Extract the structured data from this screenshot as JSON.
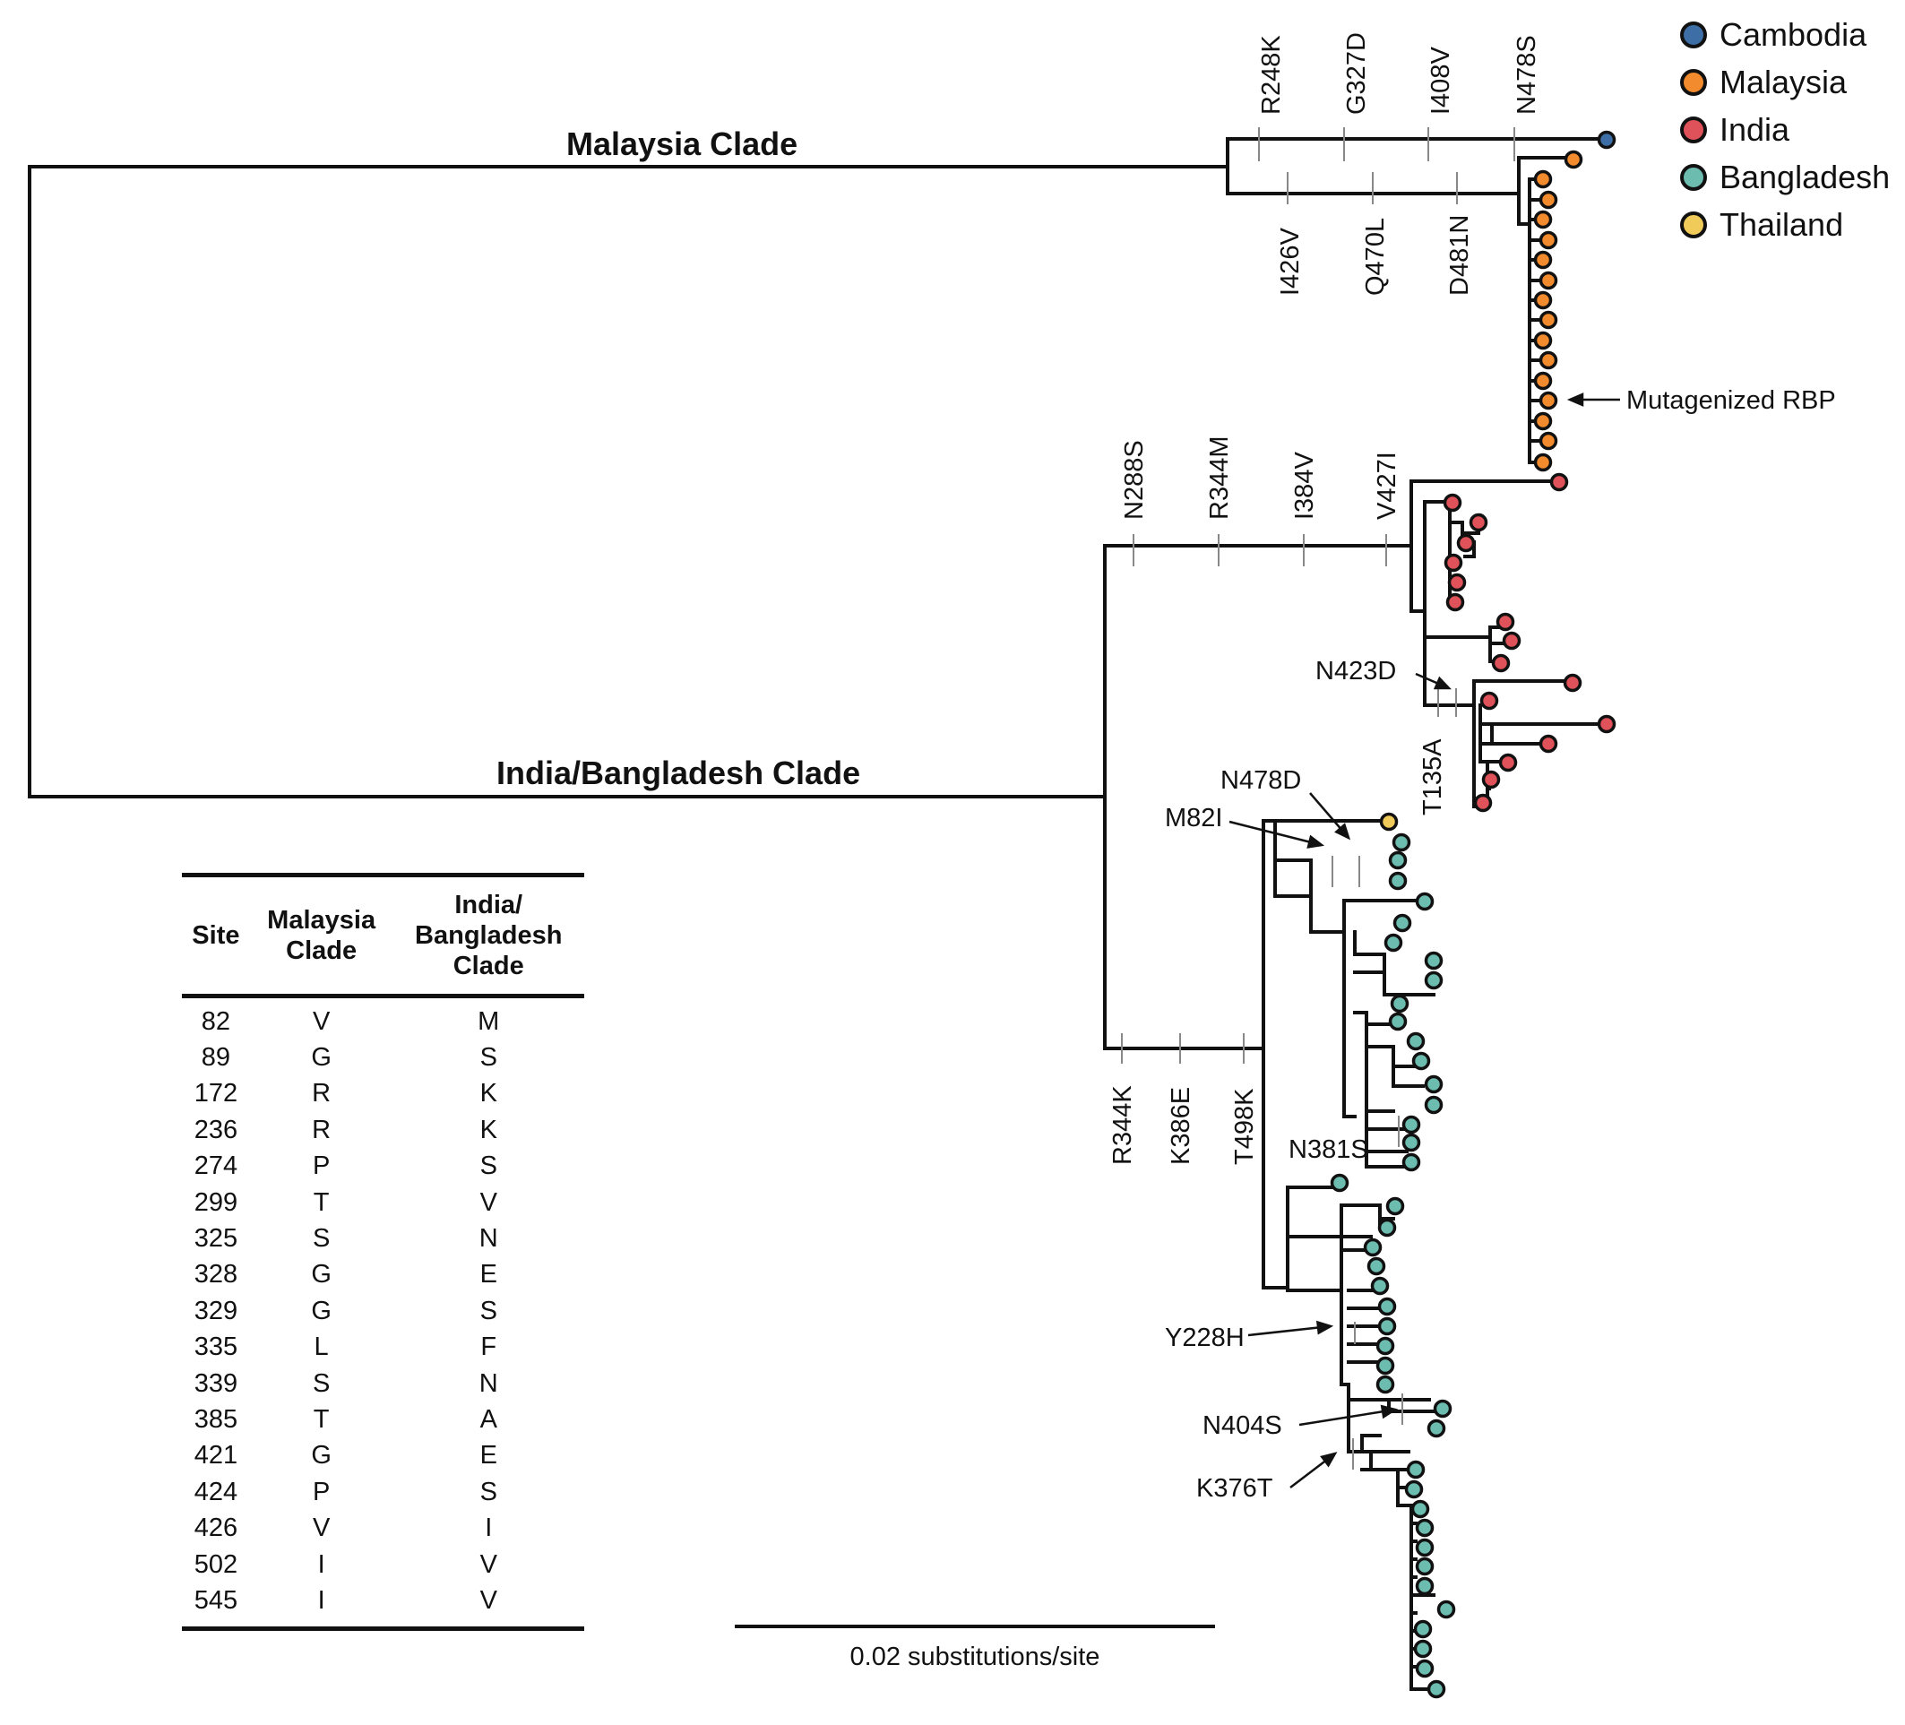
{
  "legend": {
    "items": [
      {
        "label": "Cambodia",
        "color": "#3d6fa6"
      },
      {
        "label": "Malaysia",
        "color": "#f28a2e"
      },
      {
        "label": "India",
        "color": "#e0525a"
      },
      {
        "label": "Bangladesh",
        "color": "#6cbcb0"
      },
      {
        "label": "Thailand",
        "color": "#f1cb5a"
      }
    ]
  },
  "clades": {
    "malaysia": "Malaysia Clade",
    "india_bangladesh": "India/Bangladesh Clade"
  },
  "annotations": {
    "mutagenized": "Mutagenized RBP"
  },
  "mutations": {
    "malaysia_top": [
      "R248K",
      "G327D",
      "I408V",
      "N478S"
    ],
    "malaysia_bottom": [
      "I426V",
      "Q470L",
      "D481N"
    ],
    "ib_top": [
      "N288S",
      "R344M",
      "I384V",
      "V427I"
    ],
    "ib_bottom": [
      "R344K",
      "K386E",
      "T498K"
    ],
    "india_sub": [
      "N423D",
      "T135A"
    ],
    "bangladesh": [
      "N478D",
      "M82I",
      "N381S",
      "Y228H",
      "N404S",
      "K376T"
    ]
  },
  "table": {
    "headers": [
      "Site",
      "Malaysia\nClade",
      "India/\nBangladesh\nClade"
    ],
    "rows": [
      [
        "82",
        "V",
        "M"
      ],
      [
        "89",
        "G",
        "S"
      ],
      [
        "172",
        "R",
        "K"
      ],
      [
        "236",
        "R",
        "K"
      ],
      [
        "274",
        "P",
        "S"
      ],
      [
        "299",
        "T",
        "V"
      ],
      [
        "325",
        "S",
        "N"
      ],
      [
        "328",
        "G",
        "E"
      ],
      [
        "329",
        "G",
        "S"
      ],
      [
        "335",
        "L",
        "F"
      ],
      [
        "339",
        "S",
        "N"
      ],
      [
        "385",
        "T",
        "A"
      ],
      [
        "421",
        "G",
        "E"
      ],
      [
        "424",
        "P",
        "S"
      ],
      [
        "426",
        "V",
        "I"
      ],
      [
        "502",
        "I",
        "V"
      ],
      [
        "545",
        "I",
        "V"
      ]
    ]
  },
  "scale": {
    "label": "0.02 substitutions/site"
  }
}
